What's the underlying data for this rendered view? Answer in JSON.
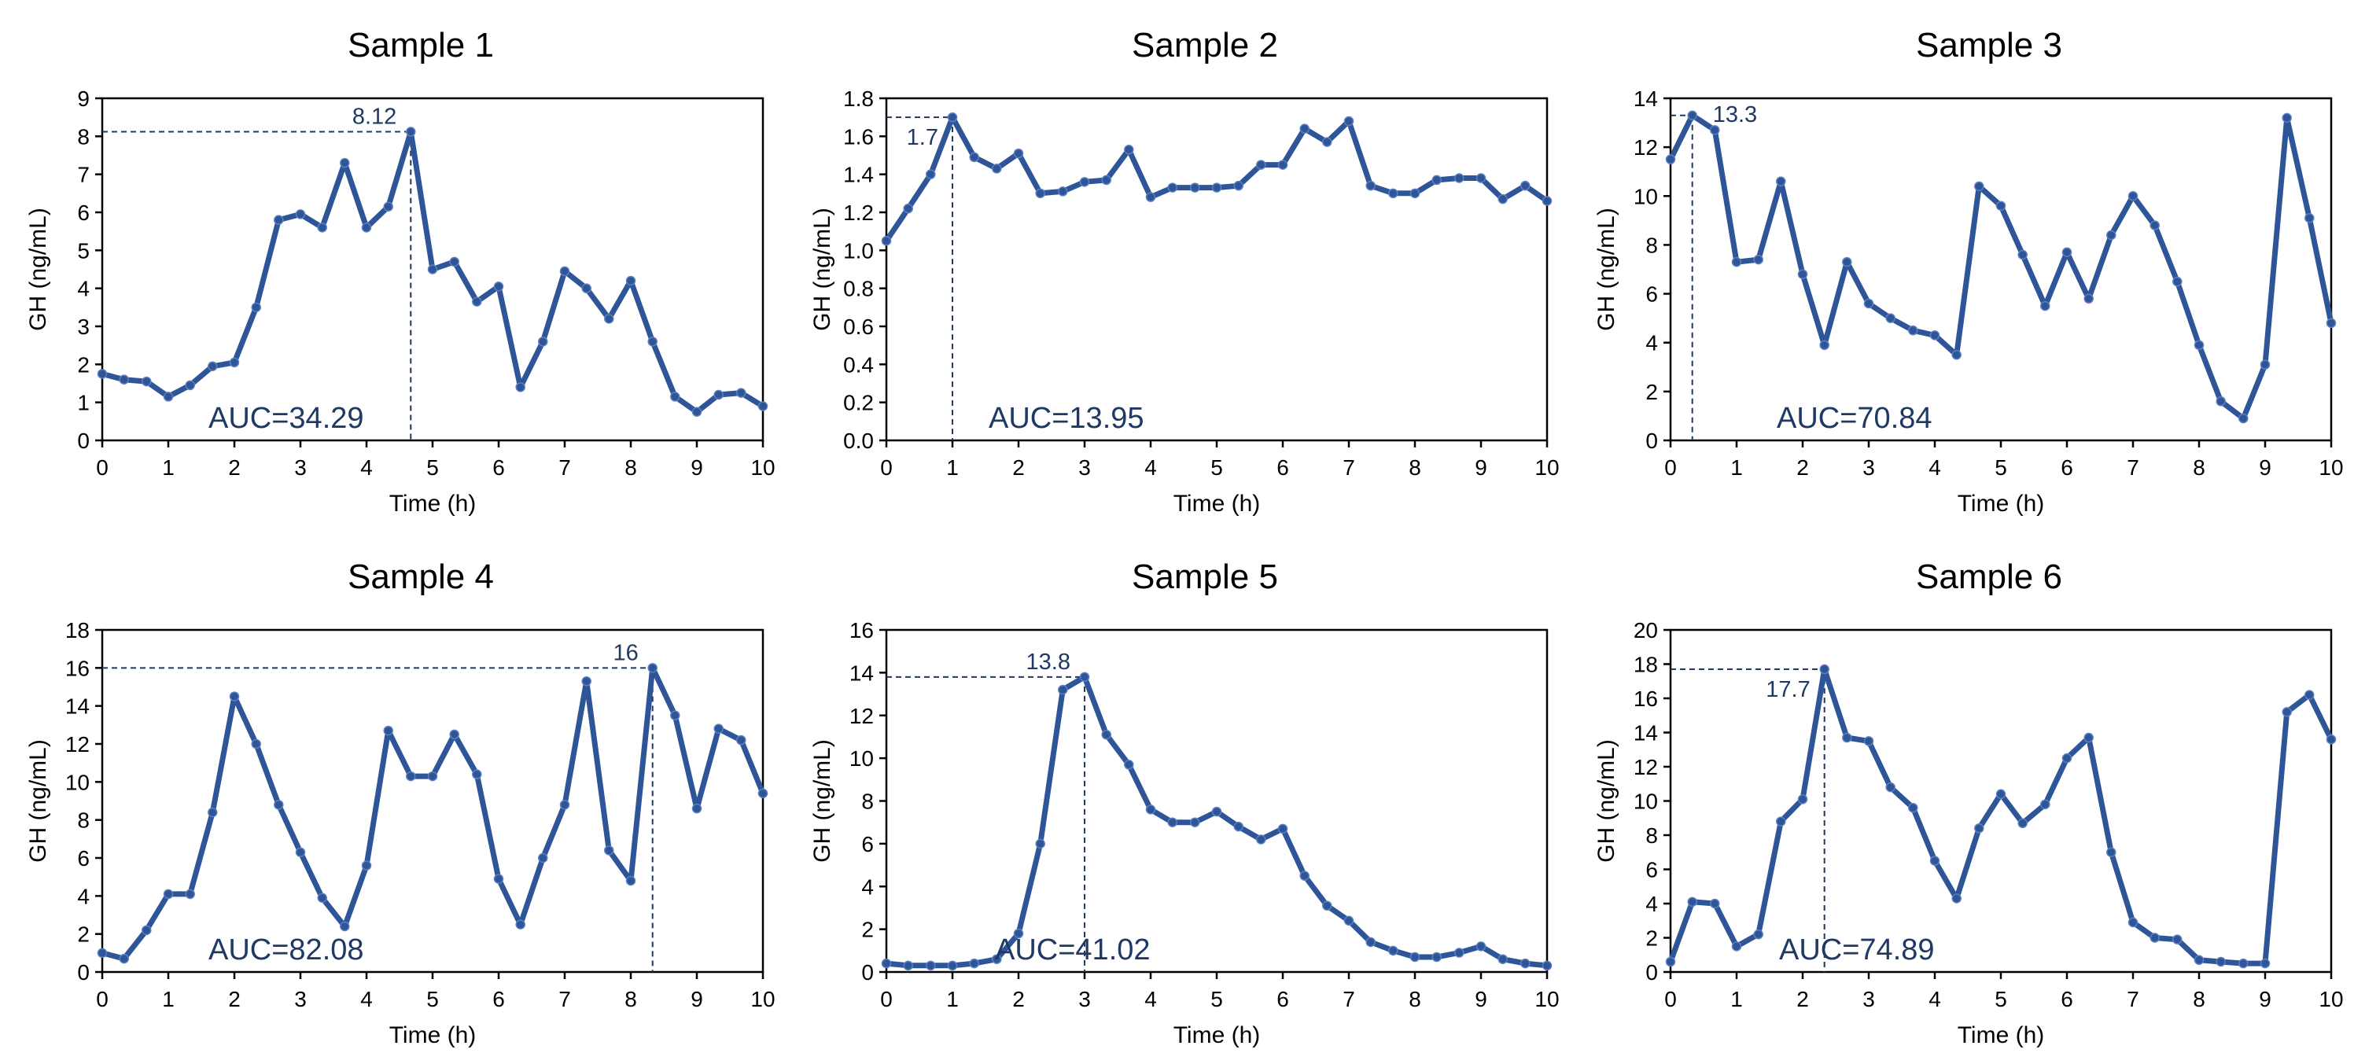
{
  "colors": {
    "series": "#2e5597",
    "marker_stroke": "#5b7fc0",
    "annotation": "#1f3864",
    "axis": "#000000"
  },
  "chart_data": [
    {
      "type": "line",
      "title": "Sample 1",
      "xlabel": "Time (h)",
      "ylabel": "GH (ng/mL)",
      "xlim": [
        0,
        10
      ],
      "ylim": [
        0,
        9
      ],
      "xticks": [
        "0",
        "1",
        "2",
        "3",
        "4",
        "5",
        "6",
        "7",
        "8",
        "9",
        "10"
      ],
      "yticks": [
        "0",
        "1",
        "2",
        "3",
        "4",
        "5",
        "6",
        "7",
        "8",
        "9"
      ],
      "x": [
        0,
        0.33,
        0.67,
        1,
        1.33,
        1.67,
        2,
        2.33,
        2.67,
        3,
        3.33,
        3.67,
        4,
        4.33,
        4.67,
        5,
        5.33,
        5.67,
        6,
        6.33,
        6.67,
        7,
        7.33,
        7.67,
        8,
        8.33,
        8.67,
        9,
        9.33,
        9.67,
        10
      ],
      "values": [
        1.75,
        1.6,
        1.55,
        1.15,
        1.45,
        1.95,
        2.05,
        3.5,
        5.8,
        5.95,
        5.6,
        7.3,
        5.6,
        6.15,
        8.12,
        4.5,
        4.7,
        3.65,
        4.05,
        1.4,
        2.6,
        4.45,
        4.0,
        3.2,
        4.2,
        2.6,
        1.15,
        0.75,
        1.2,
        1.25,
        0.9
      ],
      "peak": {
        "x": 4.67,
        "y": 8.12,
        "label": "8.12"
      },
      "auc": "AUC=34.29"
    },
    {
      "type": "line",
      "title": "Sample 2",
      "xlabel": "Time (h)",
      "ylabel": "GH (ng/mL)",
      "xlim": [
        0,
        10
      ],
      "ylim": [
        0,
        1.8
      ],
      "xticks": [
        "0",
        "1",
        "2",
        "3",
        "4",
        "5",
        "6",
        "7",
        "8",
        "9",
        "10"
      ],
      "yticks": [
        "0.0",
        "0.2",
        "0.4",
        "0.6",
        "0.8",
        "1.0",
        "1.2",
        "1.4",
        "1.6",
        "1.8"
      ],
      "x": [
        0,
        0.33,
        0.67,
        1,
        1.33,
        1.67,
        2,
        2.33,
        2.67,
        3,
        3.33,
        3.67,
        4,
        4.33,
        4.67,
        5,
        5.33,
        5.67,
        6,
        6.33,
        6.67,
        7,
        7.33,
        7.67,
        8,
        8.33,
        8.67,
        9,
        9.33,
        9.67,
        10
      ],
      "values": [
        1.05,
        1.22,
        1.4,
        1.7,
        1.49,
        1.43,
        1.51,
        1.3,
        1.31,
        1.36,
        1.37,
        1.53,
        1.28,
        1.33,
        1.33,
        1.33,
        1.34,
        1.45,
        1.45,
        1.64,
        1.57,
        1.68,
        1.34,
        1.3,
        1.3,
        1.37,
        1.38,
        1.38,
        1.27,
        1.34,
        1.26
      ],
      "peak": {
        "x": 1,
        "y": 1.7,
        "label": "1.7"
      },
      "auc": "AUC=13.95"
    },
    {
      "type": "line",
      "title": "Sample 3",
      "xlabel": "Time (h)",
      "ylabel": "GH (ng/mL)",
      "xlim": [
        0,
        10
      ],
      "ylim": [
        0,
        14
      ],
      "xticks": [
        "0",
        "1",
        "2",
        "3",
        "4",
        "5",
        "6",
        "7",
        "8",
        "9",
        "10"
      ],
      "yticks": [
        "0",
        "2",
        "4",
        "6",
        "8",
        "10",
        "12",
        "14"
      ],
      "x": [
        0,
        0.33,
        0.67,
        1,
        1.33,
        1.67,
        2,
        2.33,
        2.67,
        3,
        3.33,
        3.67,
        4,
        4.33,
        4.67,
        5,
        5.33,
        5.67,
        6,
        6.33,
        6.67,
        7,
        7.33,
        7.67,
        8,
        8.33,
        8.67,
        9,
        9.33,
        9.67,
        10
      ],
      "values": [
        11.5,
        13.3,
        12.7,
        7.3,
        7.4,
        10.6,
        6.8,
        3.9,
        7.3,
        5.6,
        5.0,
        4.5,
        4.3,
        3.5,
        10.4,
        9.6,
        7.6,
        5.5,
        7.7,
        5.8,
        8.4,
        10.0,
        8.8,
        6.5,
        3.9,
        1.6,
        0.9,
        3.1,
        13.2,
        9.1,
        4.8
      ],
      "peak": {
        "x": 0.33,
        "y": 13.3,
        "label": "13.3"
      },
      "auc": "AUC=70.84"
    },
    {
      "type": "line",
      "title": "Sample 4",
      "xlabel": "Time (h)",
      "ylabel": "GH (ng/mL)",
      "xlim": [
        0,
        10
      ],
      "ylim": [
        0,
        18
      ],
      "xticks": [
        "0",
        "1",
        "2",
        "3",
        "4",
        "5",
        "6",
        "7",
        "8",
        "9",
        "10"
      ],
      "yticks": [
        "0",
        "2",
        "4",
        "6",
        "8",
        "10",
        "12",
        "14",
        "16",
        "18"
      ],
      "x": [
        0,
        0.33,
        0.67,
        1,
        1.33,
        1.67,
        2,
        2.33,
        2.67,
        3,
        3.33,
        3.67,
        4,
        4.33,
        4.67,
        5,
        5.33,
        5.67,
        6,
        6.33,
        6.67,
        7,
        7.33,
        7.67,
        8,
        8.33,
        8.67,
        9,
        9.33,
        9.67,
        10
      ],
      "values": [
        1.0,
        0.7,
        2.2,
        4.1,
        4.1,
        8.4,
        14.5,
        12.0,
        8.8,
        6.3,
        3.9,
        2.4,
        5.6,
        12.7,
        10.3,
        10.3,
        12.5,
        10.4,
        4.9,
        2.5,
        6.0,
        8.8,
        15.3,
        6.4,
        4.8,
        16.0,
        13.5,
        8.6,
        12.8,
        12.2,
        9.4
      ],
      "peak": {
        "x": 8.33,
        "y": 16,
        "label": "16"
      },
      "auc": "AUC=82.08"
    },
    {
      "type": "line",
      "title": "Sample 5",
      "xlabel": "Time (h)",
      "ylabel": "GH (ng/mL)",
      "xlim": [
        0,
        10
      ],
      "ylim": [
        0,
        16
      ],
      "xticks": [
        "0",
        "1",
        "2",
        "3",
        "4",
        "5",
        "6",
        "7",
        "8",
        "9",
        "10"
      ],
      "yticks": [
        "0",
        "2",
        "4",
        "6",
        "8",
        "10",
        "12",
        "14",
        "16"
      ],
      "x": [
        0,
        0.33,
        0.67,
        1,
        1.33,
        1.67,
        2,
        2.33,
        2.67,
        3,
        3.33,
        3.67,
        4,
        4.33,
        4.67,
        5,
        5.33,
        5.67,
        6,
        6.33,
        6.67,
        7,
        7.33,
        7.67,
        8,
        8.33,
        8.67,
        9,
        9.33,
        9.67,
        10
      ],
      "values": [
        0.4,
        0.3,
        0.3,
        0.3,
        0.4,
        0.6,
        1.8,
        6.0,
        13.2,
        13.8,
        11.1,
        9.7,
        7.6,
        7.0,
        7.0,
        7.5,
        6.8,
        6.2,
        6.7,
        4.5,
        3.1,
        2.4,
        1.4,
        1.0,
        0.7,
        0.7,
        0.9,
        1.2,
        0.6,
        0.4,
        0.3
      ],
      "peak": {
        "x": 3,
        "y": 13.8,
        "label": "13.8"
      },
      "auc": "AUC=41.02"
    },
    {
      "type": "line",
      "title": "Sample 6",
      "xlabel": "Time (h)",
      "ylabel": "GH (ng/mL)",
      "xlim": [
        0,
        10
      ],
      "ylim": [
        0,
        20
      ],
      "xticks": [
        "0",
        "1",
        "2",
        "3",
        "4",
        "5",
        "6",
        "7",
        "8",
        "9",
        "10"
      ],
      "yticks": [
        "0",
        "2",
        "4",
        "6",
        "8",
        "10",
        "12",
        "14",
        "16",
        "18",
        "20"
      ],
      "x": [
        0,
        0.33,
        0.67,
        1,
        1.33,
        1.67,
        2,
        2.33,
        2.67,
        3,
        3.33,
        3.67,
        4,
        4.33,
        4.67,
        5,
        5.33,
        5.67,
        6,
        6.33,
        6.67,
        7,
        7.33,
        7.67,
        8,
        8.33,
        8.67,
        9,
        9.33,
        9.67,
        10
      ],
      "values": [
        0.6,
        4.1,
        4.0,
        1.5,
        2.2,
        8.8,
        10.1,
        17.7,
        13.7,
        13.5,
        10.8,
        9.6,
        6.5,
        4.3,
        8.4,
        10.4,
        8.7,
        9.8,
        12.5,
        13.7,
        7.0,
        2.9,
        2.0,
        1.9,
        0.7,
        0.6,
        0.5,
        0.5,
        15.2,
        16.2,
        13.6
      ],
      "peak": {
        "x": 2.33,
        "y": 17.7,
        "label": "17.7"
      },
      "auc": "AUC=74.89"
    }
  ]
}
